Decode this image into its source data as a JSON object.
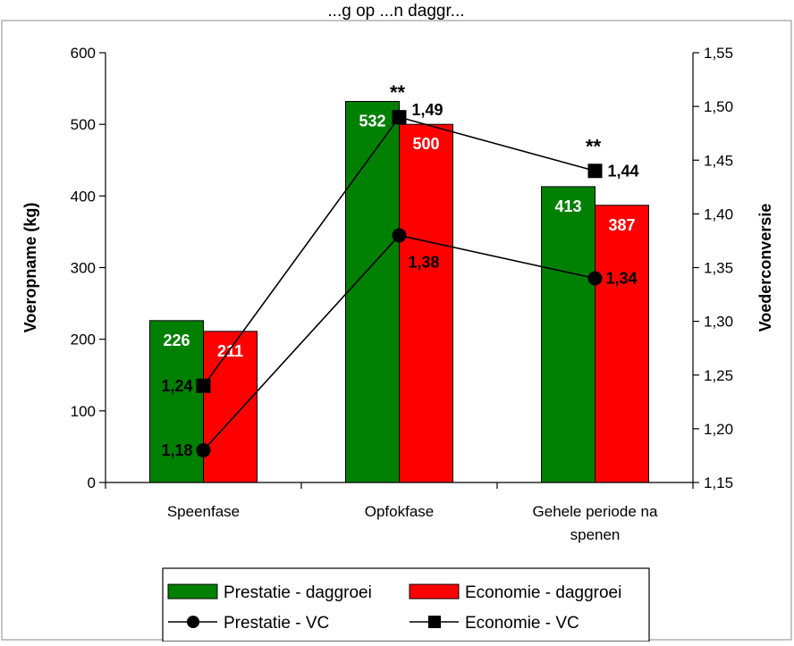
{
  "chart_data": {
    "type": "bar",
    "title": "...g op ...n daggr...",
    "categories": [
      [
        "Speenfase"
      ],
      [
        "Opfokfase"
      ],
      [
        "Gehele periode na",
        "spenen"
      ]
    ],
    "ylabel": "Voeropname (kg)",
    "y2label": "Voederconversie",
    "ylim": [
      0,
      600
    ],
    "yticks": [
      0,
      100,
      200,
      300,
      400,
      500,
      600
    ],
    "y2lim": [
      1.15,
      1.55
    ],
    "y2ticks": [
      "1,15",
      "1,20",
      "1,25",
      "1,30",
      "1,35",
      "1,40",
      "1,45",
      "1,50",
      "1,55"
    ],
    "grid": false,
    "legend_position": "bottom",
    "series": [
      {
        "name": "Prestatie - daggroei",
        "kind": "bar",
        "axis": "left",
        "color": "#008000",
        "values": [
          226,
          532,
          413
        ],
        "labels": [
          "226",
          "532",
          "413"
        ]
      },
      {
        "name": "Economie - daggroei",
        "kind": "bar",
        "axis": "left",
        "color": "#ff0000",
        "values": [
          211,
          500,
          387
        ],
        "labels": [
          "211",
          "500",
          "387"
        ]
      },
      {
        "name": "Prestatie - VC",
        "kind": "line",
        "marker": "circle",
        "axis": "right",
        "color": "#000000",
        "values": [
          1.18,
          1.38,
          1.34
        ],
        "labels": [
          "1,18",
          "1,38",
          "1,34"
        ]
      },
      {
        "name": "Economie - VC",
        "kind": "line",
        "marker": "square",
        "axis": "right",
        "color": "#000000",
        "values": [
          1.24,
          1.49,
          1.44
        ],
        "labels": [
          "1,24",
          "1,49",
          "1,44"
        ]
      }
    ],
    "annotations": [
      {
        "category": 1,
        "text": "**"
      },
      {
        "category": 2,
        "text": "**"
      }
    ]
  }
}
